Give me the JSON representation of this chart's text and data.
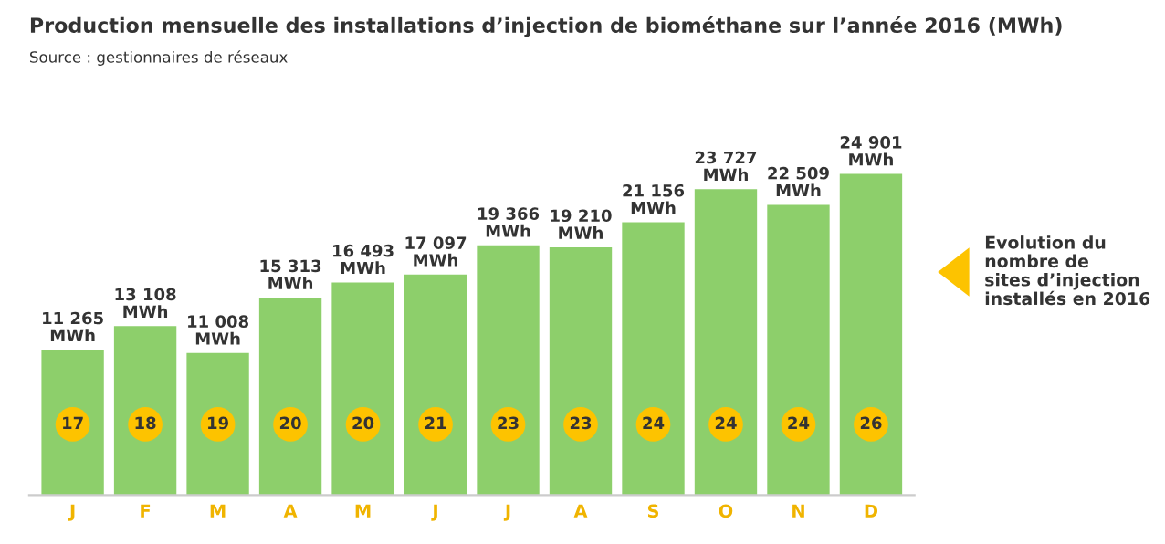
{
  "chart_data": {
    "type": "bar",
    "title": "Production mensuelle des installations d’injection de biométhane sur l’année 2016 (MWh)",
    "subtitle": "Source : gestionnaires de réseaux",
    "categories": [
      "J",
      "F",
      "M",
      "A",
      "M",
      "J",
      "J",
      "A",
      "S",
      "O",
      "N",
      "D"
    ],
    "values": [
      11265,
      13108,
      11008,
      15313,
      16493,
      17097,
      19366,
      19210,
      21156,
      23727,
      22509,
      24901
    ],
    "value_labels": [
      "11 265\nMWh",
      "13 108\nMWh",
      "11 008\nMWh",
      "15 313\nMWh",
      "16 493\nMWh",
      "17 097\nMWh",
      "19 366\nMWh",
      "19 210\nMWh",
      "21 156\nMWh",
      "23 727\nMWh",
      "22 509\nMWh",
      "24 901\nMWh"
    ],
    "color": "#8dcf6b",
    "annotations": [
      "17",
      "18",
      "19",
      "20",
      "20",
      "21",
      "23",
      "23",
      "24",
      "24",
      "24",
      "26",
      "Evolution du\nnombre de\nsites d’injection\ninstallés en 2016"
    ]
  }
}
